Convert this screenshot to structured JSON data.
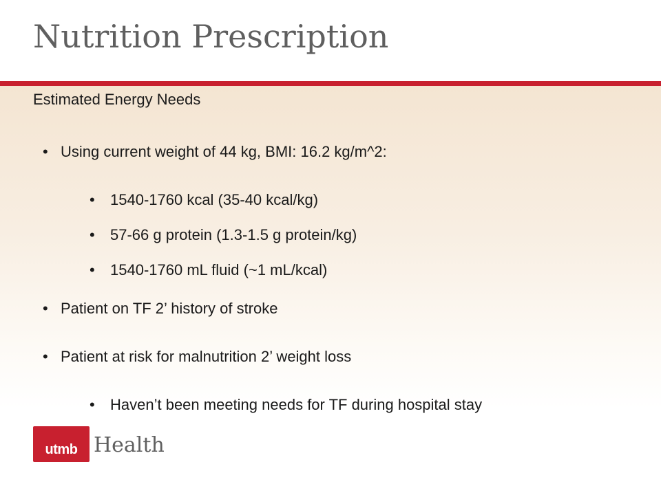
{
  "slide": {
    "title": "Nutrition Prescription",
    "subtitle": "Estimated Energy Needs",
    "bullet_char": "•",
    "bullets": [
      {
        "level": 1,
        "text": "Using current weight of 44 kg, BMI: 16.2 kg/m^2:"
      },
      {
        "level": 2,
        "text": "1540-1760 kcal (35-40 kcal/kg)"
      },
      {
        "level": 2,
        "text": "57-66 g protein (1.3-1.5 g protein/kg)"
      },
      {
        "level": 2,
        "text": "1540-1760 mL fluid (~1 mL/kcal)"
      },
      {
        "level": 1,
        "text": "Patient on TF 2’ history of stroke"
      },
      {
        "level": 1,
        "text": "Patient at risk for malnutrition 2’ weight loss"
      },
      {
        "level": 2,
        "text": "Haven’t been meeting needs for TF during hospital stay"
      }
    ]
  },
  "logo": {
    "box_text": "utmb",
    "word": "Health"
  },
  "colors": {
    "accent_red": "#c8202f",
    "title_gray": "#5f5f5f",
    "body_text": "#1a1a1a",
    "gradient_top": "#f4e5d2"
  }
}
